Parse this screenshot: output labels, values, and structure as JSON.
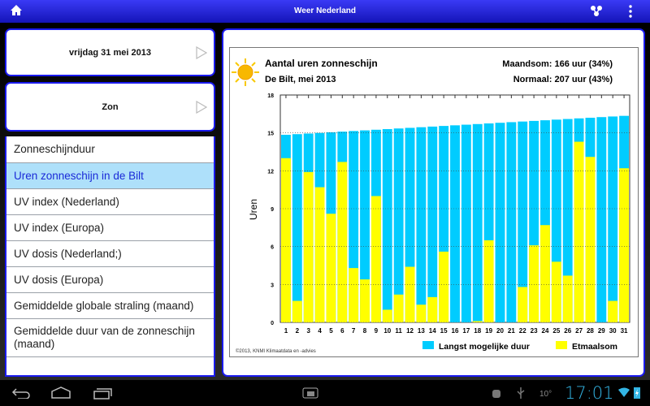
{
  "header": {
    "title": "Weer Nederland",
    "home_icon": "home-icon",
    "share_icon": "share-icon",
    "menu_icon": "overflow-menu-icon"
  },
  "cards": [
    {
      "label": "vrijdag 31 mei 2013"
    },
    {
      "label": "Zon"
    }
  ],
  "list": {
    "items": [
      {
        "label": "Zonneschijnduur"
      },
      {
        "label": "Uren zonneschijn in de Bilt",
        "selected": true
      },
      {
        "label": "UV index (Nederland)"
      },
      {
        "label": "UV index (Europa)"
      },
      {
        "label": "UV dosis (Nederland;)"
      },
      {
        "label": "UV dosis (Europa)"
      },
      {
        "label": "Gemiddelde globale straling (maand)"
      },
      {
        "label": "Gemiddelde duur van de zonneschijn (maand)"
      }
    ]
  },
  "chart_data": {
    "type": "bar",
    "title": "Aantal uren zonneschijn",
    "subtitle": "De Bilt, mei 2013",
    "summary": [
      "Maandsom: 166 uur (34%)",
      "Normaal: 207 uur (43%)"
    ],
    "ylabel": "Uren",
    "xlabel": "",
    "ylim": [
      0,
      18
    ],
    "yticks": [
      0,
      3,
      6,
      9,
      12,
      15,
      18
    ],
    "categories": [
      "1",
      "2",
      "3",
      "4",
      "5",
      "6",
      "7",
      "8",
      "9",
      "10",
      "11",
      "12",
      "13",
      "14",
      "15",
      "16",
      "17",
      "18",
      "19",
      "20",
      "21",
      "22",
      "23",
      "24",
      "25",
      "26",
      "27",
      "28",
      "29",
      "30",
      "31"
    ],
    "series": [
      {
        "name": "Langst mogelijke duur",
        "color": "#00ccff",
        "values": [
          14.85,
          14.9,
          14.95,
          15.0,
          15.05,
          15.1,
          15.15,
          15.2,
          15.25,
          15.3,
          15.35,
          15.4,
          15.45,
          15.5,
          15.55,
          15.6,
          15.65,
          15.7,
          15.75,
          15.8,
          15.85,
          15.9,
          15.95,
          16.0,
          16.05,
          16.1,
          16.15,
          16.2,
          16.25,
          16.3,
          16.35
        ]
      },
      {
        "name": "Etmaalsom",
        "color": "#ffff00",
        "values": [
          13.0,
          1.7,
          11.9,
          10.7,
          8.6,
          12.7,
          4.3,
          3.4,
          10.0,
          1.0,
          2.2,
          4.4,
          1.4,
          2.0,
          5.6,
          0,
          0,
          0.1,
          6.5,
          0,
          0,
          2.8,
          6.1,
          7.7,
          4.8,
          3.7,
          14.3,
          13.1,
          0,
          1.7,
          12.2
        ]
      }
    ],
    "legend": "bottom-right",
    "grid": true,
    "credit": "©2013, KNMI Klimaatdata en -advies"
  },
  "statusbar": {
    "temperature": "10°",
    "time": "17:01"
  }
}
